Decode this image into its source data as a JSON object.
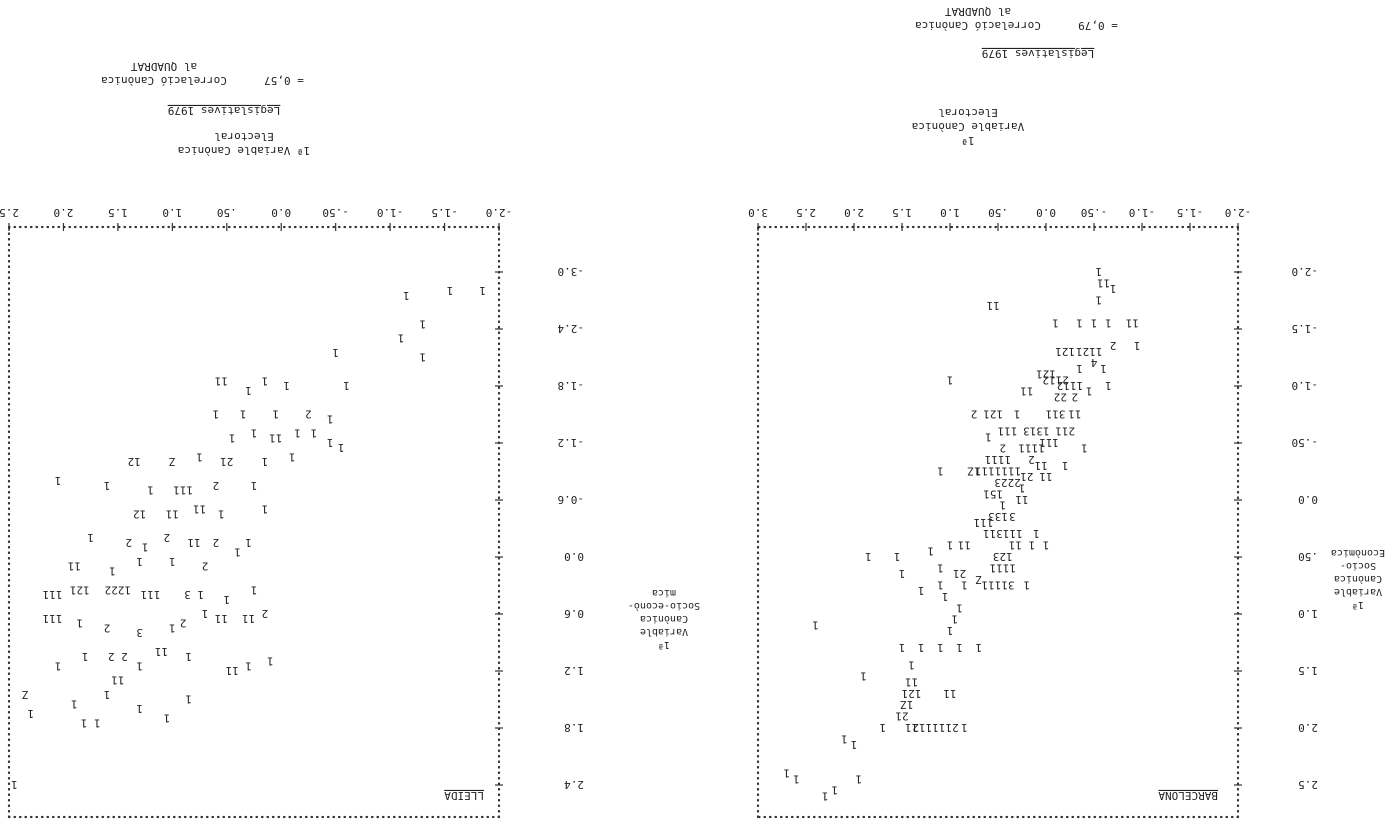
{
  "chart_data": [
    {
      "type": "scatter",
      "panel_label": "BARCELONA",
      "title": "Legislatives 1979",
      "correlation_label": "Correlació Canònica",
      "correlation_value": "= 0,79",
      "quadrat_label": "al QUADRAT",
      "xlabel_lines": [
        "1ª",
        "Variable Canònica",
        "Electoral"
      ],
      "ylabel_lines": [
        "1ª",
        "Variable",
        "Canònica",
        "Socio-",
        "Econòmica"
      ],
      "x_ticks": [
        "-2.0",
        "-1.5",
        "-1.0",
        "-.50",
        "0.0",
        ".50",
        "1.0",
        "1.5",
        "2.0",
        "2.5",
        "3.0"
      ],
      "y_ticks": [
        "-2.0",
        "-1.5",
        "-1.0",
        "-.50",
        "0.0",
        ".50",
        "1.0",
        "1.5",
        "2.0",
        "2.5"
      ],
      "xlim": [
        -2.0,
        3.0
      ],
      "ylim": [
        -2.0,
        2.5
      ],
      "points": [
        [
          2.3,
          2.6,
          "1"
        ],
        [
          2.2,
          2.55,
          "1"
        ],
        [
          2.7,
          2.4,
          "1"
        ],
        [
          2.6,
          2.45,
          "1"
        ],
        [
          1.95,
          2.45,
          "1"
        ],
        [
          2.1,
          2.1,
          "1"
        ],
        [
          2.0,
          2.15,
          "1"
        ],
        [
          1.7,
          2.0,
          "1"
        ],
        [
          1.4,
          2.0,
          "11"
        ],
        [
          1.15,
          2.0,
          "2111112"
        ],
        [
          0.85,
          2.0,
          "1"
        ],
        [
          1.5,
          1.9,
          "21"
        ],
        [
          1.45,
          1.8,
          "1Z"
        ],
        [
          1.4,
          1.7,
          "121"
        ],
        [
          1.4,
          1.6,
          "11"
        ],
        [
          1.0,
          1.7,
          "11"
        ],
        [
          1.9,
          1.55,
          "1"
        ],
        [
          1.4,
          1.45,
          "1"
        ],
        [
          1.5,
          1.3,
          "1"
        ],
        [
          1.3,
          1.3,
          "1"
        ],
        [
          1.1,
          1.3,
          "1"
        ],
        [
          0.9,
          1.3,
          "1"
        ],
        [
          0.7,
          1.3,
          "1"
        ],
        [
          2.4,
          1.1,
          "1"
        ],
        [
          1.0,
          1.15,
          "1"
        ],
        [
          0.95,
          1.05,
          "1"
        ],
        [
          0.9,
          0.95,
          "1"
        ],
        [
          1.05,
          0.85,
          "1"
        ],
        [
          1.3,
          0.8,
          "1"
        ],
        [
          1.1,
          0.75,
          "1"
        ],
        [
          0.85,
          0.75,
          "1"
        ],
        [
          0.5,
          0.75,
          "31111"
        ],
        [
          0.2,
          0.75,
          "1"
        ],
        [
          1.5,
          0.65,
          "1"
        ],
        [
          1.1,
          0.6,
          "1"
        ],
        [
          0.9,
          0.65,
          "21"
        ],
        [
          0.7,
          0.7,
          "Z"
        ],
        [
          0.45,
          0.6,
          "1111"
        ],
        [
          1.85,
          0.5,
          "1"
        ],
        [
          1.55,
          0.5,
          "1"
        ],
        [
          1.2,
          0.45,
          "1"
        ],
        [
          1.0,
          0.4,
          "1"
        ],
        [
          0.85,
          0.4,
          "11"
        ],
        [
          0.45,
          0.5,
          "123"
        ],
        [
          0.25,
          0.4,
          "1 11"
        ],
        [
          0.0,
          0.4,
          "1"
        ],
        [
          0.45,
          0.3,
          "111311"
        ],
        [
          0.1,
          0.3,
          "1"
        ],
        [
          0.65,
          0.2,
          "111"
        ],
        [
          0.5,
          0.15,
          "133"
        ],
        [
          0.35,
          0.15,
          "3"
        ],
        [
          0.45,
          0.05,
          "1"
        ],
        [
          0.25,
          0.0,
          "11"
        ],
        [
          0.55,
          -0.05,
          "151"
        ],
        [
          0.25,
          -0.1,
          "1"
        ],
        [
          0.4,
          -0.15,
          "2223"
        ],
        [
          0.2,
          -0.2,
          "21"
        ],
        [
          1.1,
          -0.25,
          "1"
        ],
        [
          0.75,
          -0.25,
          "1Z"
        ],
        [
          0.5,
          -0.25,
          "1111111"
        ],
        [
          0.0,
          -0.2,
          "11"
        ],
        [
          0.5,
          -0.35,
          "1111"
        ],
        [
          0.15,
          -0.35,
          "2"
        ],
        [
          0.05,
          -0.3,
          "11"
        ],
        [
          -0.2,
          -0.3,
          "1"
        ],
        [
          0.45,
          -0.45,
          "2"
        ],
        [
          0.15,
          -0.45,
          "1111"
        ],
        [
          0.0,
          -0.5,
          "11"
        ],
        [
          -0.1,
          -0.5,
          "1"
        ],
        [
          -0.4,
          -0.45,
          "1"
        ],
        [
          0.6,
          -0.55,
          "1"
        ],
        [
          0.4,
          -0.6,
          "111"
        ],
        [
          0.1,
          -0.6,
          "1313"
        ],
        [
          -0.2,
          -0.6,
          "211"
        ],
        [
          0.75,
          -0.75,
          "2"
        ],
        [
          0.55,
          -0.75,
          "121"
        ],
        [
          0.3,
          -0.75,
          "1"
        ],
        [
          -0.1,
          -0.75,
          "311"
        ],
        [
          -0.3,
          -0.75,
          "11"
        ],
        [
          0.2,
          -0.95,
          "11"
        ],
        [
          -0.15,
          -0.9,
          "22"
        ],
        [
          -0.3,
          -0.9,
          "2"
        ],
        [
          1.0,
          -1.05,
          "1"
        ],
        [
          0.0,
          -1.1,
          "121"
        ],
        [
          -0.1,
          -1.05,
          "2112"
        ],
        [
          -0.25,
          -1.0,
          "1112"
        ],
        [
          -0.45,
          -0.95,
          "1"
        ],
        [
          -0.65,
          -1.0,
          "1"
        ],
        [
          -0.35,
          -1.15,
          "1"
        ],
        [
          -0.5,
          -1.2,
          "4"
        ],
        [
          -0.6,
          -1.15,
          "1"
        ],
        [
          -0.2,
          -1.3,
          "121"
        ],
        [
          -0.45,
          -1.3,
          "1121"
        ],
        [
          -0.7,
          -1.35,
          "2"
        ],
        [
          -0.95,
          -1.35,
          "1"
        ],
        [
          -0.1,
          -1.55,
          "1"
        ],
        [
          -0.35,
          -1.55,
          "1"
        ],
        [
          -0.5,
          -1.55,
          "1"
        ],
        [
          -0.65,
          -1.55,
          "1"
        ],
        [
          -0.9,
          -1.55,
          "11"
        ],
        [
          0.55,
          -1.7,
          "11"
        ],
        [
          -0.55,
          -1.75,
          "1"
        ],
        [
          -0.7,
          -1.85,
          "1"
        ],
        [
          -0.6,
          -1.9,
          "11"
        ],
        [
          -0.55,
          -2.0,
          "1"
        ]
      ]
    },
    {
      "type": "scatter",
      "panel_label": "LLEIDA",
      "title": "Legislatives 1979",
      "correlation_label": "Correlació Canònica",
      "correlation_value": "= 0,57",
      "quadrat_label": "al QUADRAT",
      "xlabel_lines": [
        "1ª Variable Canònica",
        "Electoral"
      ],
      "ylabel_lines": [
        "1ª",
        "Variable",
        "Canònica",
        "Socio-econò-",
        "mica"
      ],
      "x_ticks": [
        "-2.0",
        "-1.5",
        "-1.0",
        "-.50",
        "0.0",
        ".50",
        "1.0",
        "1.5",
        "2.0",
        "2.5"
      ],
      "y_ticks": [
        "-3.0",
        "-2.4",
        "-1.8",
        "-1.2",
        "-0.6",
        "0.0",
        "0.6",
        "1.2",
        "1.8",
        "2.4"
      ],
      "xlim": [
        -2.0,
        2.5
      ],
      "ylim": [
        -3.0,
        2.4
      ],
      "points": [
        [
          2.45,
          2.4,
          "1"
        ],
        [
          2.3,
          1.65,
          "1"
        ],
        [
          2.35,
          1.45,
          "Z"
        ],
        [
          1.75,
          1.75,
          "1 1"
        ],
        [
          1.9,
          1.55,
          "1"
        ],
        [
          1.6,
          1.45,
          "1"
        ],
        [
          1.5,
          1.3,
          "11"
        ],
        [
          1.3,
          1.6,
          "1"
        ],
        [
          1.05,
          1.7,
          "1"
        ],
        [
          0.85,
          1.5,
          "1"
        ],
        [
          2.05,
          1.15,
          "1"
        ],
        [
          1.8,
          1.05,
          "1"
        ],
        [
          1.5,
          1.05,
          "2 2"
        ],
        [
          1.3,
          1.15,
          "1"
        ],
        [
          1.1,
          1.0,
          "11"
        ],
        [
          0.85,
          1.05,
          "1"
        ],
        [
          0.45,
          1.2,
          "11"
        ],
        [
          0.3,
          1.15,
          "1"
        ],
        [
          0.1,
          1.1,
          "1"
        ],
        [
          2.1,
          0.65,
          "111"
        ],
        [
          1.85,
          0.7,
          "1"
        ],
        [
          1.6,
          0.75,
          "2"
        ],
        [
          1.3,
          0.8,
          "3"
        ],
        [
          1.0,
          0.75,
          "1"
        ],
        [
          0.9,
          0.7,
          "2"
        ],
        [
          0.7,
          0.6,
          "1"
        ],
        [
          0.55,
          0.65,
          "11"
        ],
        [
          0.3,
          0.65,
          "11"
        ],
        [
          0.15,
          0.6,
          "2"
        ],
        [
          2.1,
          0.4,
          "111"
        ],
        [
          1.85,
          0.35,
          "121"
        ],
        [
          1.5,
          0.35,
          "1222"
        ],
        [
          1.2,
          0.4,
          "111"
        ],
        [
          0.8,
          0.4,
          "1 3"
        ],
        [
          0.5,
          0.45,
          "1"
        ],
        [
          0.25,
          0.35,
          "1"
        ],
        [
          1.9,
          0.1,
          "11"
        ],
        [
          1.55,
          0.15,
          "1"
        ],
        [
          1.3,
          0.05,
          "1"
        ],
        [
          1.0,
          0.05,
          "1"
        ],
        [
          0.7,
          0.1,
          "2"
        ],
        [
          0.4,
          -0.05,
          "1"
        ],
        [
          1.75,
          -0.2,
          "1"
        ],
        [
          1.4,
          -0.15,
          "2"
        ],
        [
          1.25,
          -0.1,
          "1"
        ],
        [
          1.05,
          -0.2,
          "2"
        ],
        [
          0.8,
          -0.15,
          "11"
        ],
        [
          0.6,
          -0.15,
          "2"
        ],
        [
          0.3,
          -0.15,
          "1"
        ],
        [
          1.3,
          -0.45,
          "12"
        ],
        [
          1.0,
          -0.45,
          "11"
        ],
        [
          0.75,
          -0.5,
          "11"
        ],
        [
          0.55,
          -0.45,
          "1"
        ],
        [
          0.15,
          -0.5,
          "1"
        ],
        [
          1.2,
          -0.7,
          "1"
        ],
        [
          0.9,
          -0.7,
          "111"
        ],
        [
          0.6,
          -0.75,
          "2"
        ],
        [
          0.25,
          -0.75,
          "1"
        ],
        [
          1.6,
          -0.75,
          "1"
        ],
        [
          2.05,
          -0.8,
          "1"
        ],
        [
          1.35,
          -1.0,
          "12"
        ],
        [
          1.0,
          -1.0,
          "Z"
        ],
        [
          0.75,
          -1.05,
          "1"
        ],
        [
          0.5,
          -1.0,
          "21"
        ],
        [
          0.15,
          -1.0,
          "1"
        ],
        [
          -0.1,
          -1.05,
          "1"
        ],
        [
          0.45,
          -1.25,
          "1"
        ],
        [
          0.25,
          -1.3,
          "1"
        ],
        [
          0.05,
          -1.25,
          "11"
        ],
        [
          -0.15,
          -1.3,
          "1"
        ],
        [
          -0.3,
          -1.3,
          "1"
        ],
        [
          -0.45,
          -1.2,
          "1"
        ],
        [
          -0.55,
          -1.15,
          "1"
        ],
        [
          0.6,
          -1.5,
          "1"
        ],
        [
          0.35,
          -1.5,
          "1"
        ],
        [
          0.05,
          -1.5,
          "1"
        ],
        [
          -0.25,
          -1.5,
          "2"
        ],
        [
          -0.45,
          -1.45,
          "1"
        ],
        [
          -0.05,
          -1.8,
          "1"
        ],
        [
          0.15,
          -1.85,
          "1"
        ],
        [
          0.3,
          -1.75,
          "1"
        ],
        [
          0.55,
          -1.85,
          "11"
        ],
        [
          -0.6,
          -1.8,
          "1"
        ],
        [
          -0.5,
          -2.15,
          "1"
        ],
        [
          -1.1,
          -2.3,
          "1"
        ],
        [
          -1.3,
          -2.1,
          "1"
        ],
        [
          -1.3,
          -2.45,
          "1"
        ],
        [
          -1.15,
          -2.75,
          "1"
        ],
        [
          -1.55,
          -2.8,
          "1"
        ],
        [
          -1.85,
          -2.8,
          "1"
        ]
      ]
    }
  ]
}
